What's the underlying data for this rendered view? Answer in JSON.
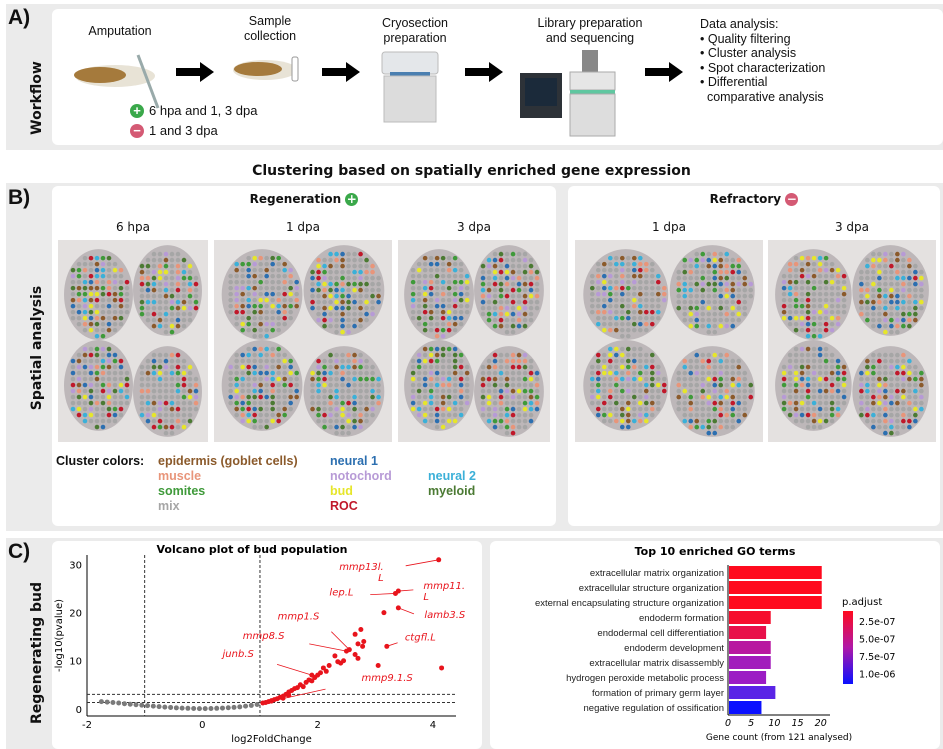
{
  "panel_a": {
    "label": "A)",
    "side_label": "Workflow",
    "steps": [
      {
        "title": "Amputation"
      },
      {
        "title": "Sample\ncollection"
      },
      {
        "title": "Cryosection\npreparation"
      },
      {
        "title": "Library preparation\nand sequencing"
      }
    ],
    "conditions": [
      {
        "icon": "plus-circle-icon",
        "color": "#3aa84a",
        "text": "6 hpa and 1, 3 dpa"
      },
      {
        "icon": "minus-circle-icon",
        "color": "#d45a74",
        "text": "1 and 3 dpa"
      }
    ],
    "analysis": {
      "title": "Data analysis:",
      "items": [
        "• Quality filtering",
        "• Cluster analysis",
        "• Spot characterization",
        "• Differential",
        "  comparative analysis"
      ]
    }
  },
  "heading": "Clustering based on spatially enriched gene expression",
  "panel_b": {
    "label": "B)",
    "side_label": "Spatial analysis",
    "regeneration": {
      "title": "Regeneration",
      "icon": "plus-circle-icon",
      "columns": [
        "6 hpa",
        "1 dpa",
        "3 dpa"
      ]
    },
    "refractory": {
      "title": "Refractory",
      "icon": "minus-circle-icon",
      "columns": [
        "1 dpa",
        "3 dpa"
      ]
    },
    "legend": {
      "title": "Cluster colors:",
      "items": [
        {
          "name": "epidermis (goblet cells)",
          "color": "#8b5a2b"
        },
        {
          "name": "muscle",
          "color": "#e8957a"
        },
        {
          "name": "somites",
          "color": "#3f9a3a"
        },
        {
          "name": "mix",
          "color": "#a6a6a6"
        },
        {
          "name": "neural 1",
          "color": "#2c6fb0"
        },
        {
          "name": "notochord",
          "color": "#b79ad6"
        },
        {
          "name": "bud",
          "color": "#e6e62a"
        },
        {
          "name": "ROC",
          "color": "#c0182a"
        },
        {
          "name": "neural 2",
          "color": "#3bb0d8"
        },
        {
          "name": "myeloid",
          "color": "#4b7a33"
        }
      ]
    }
  },
  "panel_c": {
    "label": "C)",
    "side_label": "Regenerating bud"
  },
  "chart_data": [
    {
      "type": "scatter",
      "title": "Volcano plot of bud population",
      "xlabel": "log2FoldChange",
      "ylabel": "-log10(pvalue)",
      "xlim": [
        -2,
        4.4
      ],
      "ylim": [
        -1.5,
        32
      ],
      "xticks": [
        -2,
        0,
        2,
        4
      ],
      "yticks": [
        0,
        10,
        20,
        30
      ],
      "thresholds": {
        "x": [
          -1,
          1
        ],
        "y": [
          1.3,
          3
        ]
      },
      "colors": {
        "significant": "#e8141c",
        "not_significant": "#7a7a7a"
      },
      "labeled_points": [
        {
          "gene": "mmp13l.\nL",
          "x": 4.1,
          "y": 31
        },
        {
          "gene": "mmp11.\nL",
          "x": 3.4,
          "y": 24.5
        },
        {
          "gene": "lep.L",
          "x": 3.35,
          "y": 24
        },
        {
          "gene": "lamb3.S",
          "x": 3.4,
          "y": 21
        },
        {
          "gene": "ctgfl.L",
          "x": 3.2,
          "y": 13
        },
        {
          "gene": "mmp1.S",
          "x": 2.55,
          "y": 12.3
        },
        {
          "gene": "mmp8.S",
          "x": 2.5,
          "y": 12
        },
        {
          "gene": "junb.S",
          "x": 1.9,
          "y": 7
        },
        {
          "gene": "mmp9.1.S",
          "x": 1.2,
          "y": 1.6
        }
      ],
      "significant_points": [
        [
          3.15,
          20
        ],
        [
          4.15,
          8.5
        ],
        [
          3.05,
          9
        ],
        [
          2.75,
          16.5
        ],
        [
          2.65,
          15.5
        ],
        [
          2.7,
          13.5
        ],
        [
          2.8,
          14
        ],
        [
          2.78,
          13
        ],
        [
          2.65,
          11.3
        ],
        [
          2.7,
          10.5
        ],
        [
          2.4,
          9.5
        ],
        [
          2.3,
          11
        ],
        [
          2.2,
          9
        ],
        [
          2.1,
          8.5
        ],
        [
          2.05,
          7.5
        ],
        [
          1.95,
          6.5
        ],
        [
          1.85,
          6
        ],
        [
          1.8,
          5.5
        ],
        [
          1.7,
          5
        ],
        [
          1.6,
          4.2
        ],
        [
          1.55,
          3.8
        ],
        [
          1.5,
          3.5
        ],
        [
          1.45,
          3
        ],
        [
          1.4,
          2.6
        ],
        [
          1.35,
          2.4
        ],
        [
          1.3,
          2.1
        ],
        [
          1.25,
          1.9
        ],
        [
          1.2,
          1.7
        ],
        [
          1.15,
          1.5
        ],
        [
          1.1,
          1.3
        ],
        [
          1.05,
          1.2
        ],
        [
          2.15,
          7.8
        ],
        [
          2.0,
          7
        ],
        [
          1.75,
          4.6
        ],
        [
          1.65,
          4.4
        ],
        [
          1.9,
          5.8
        ],
        [
          2.35,
          9.8
        ],
        [
          2.45,
          10
        ],
        [
          1.5,
          2.8
        ],
        [
          1.4,
          2.2
        ]
      ],
      "nonsignificant_points": [
        [
          -1.75,
          1.5
        ],
        [
          -1.65,
          1.4
        ],
        [
          -1.55,
          1.3
        ],
        [
          -1.45,
          1.2
        ],
        [
          -1.35,
          1.05
        ],
        [
          -1.25,
          0.95
        ],
        [
          -1.15,
          0.85
        ],
        [
          -1.05,
          0.75
        ],
        [
          -0.95,
          0.65
        ],
        [
          -0.85,
          0.55
        ],
        [
          -0.75,
          0.45
        ],
        [
          -0.65,
          0.35
        ],
        [
          -0.55,
          0.28
        ],
        [
          -0.45,
          0.2
        ],
        [
          -0.35,
          0.14
        ],
        [
          -0.25,
          0.1
        ],
        [
          -0.15,
          0.06
        ],
        [
          -0.05,
          0.04
        ],
        [
          0.05,
          0.04
        ],
        [
          0.15,
          0.06
        ],
        [
          0.25,
          0.1
        ],
        [
          0.35,
          0.15
        ],
        [
          0.45,
          0.22
        ],
        [
          0.55,
          0.3
        ],
        [
          0.65,
          0.4
        ],
        [
          0.75,
          0.55
        ],
        [
          0.85,
          0.7
        ],
        [
          0.95,
          0.9
        ]
      ]
    },
    {
      "type": "bar",
      "orientation": "horizontal",
      "title": "Top 10 enriched GO terms",
      "xlabel": "Gene count (from 121 analysed)",
      "xlim": [
        0,
        22
      ],
      "xticks": [
        0,
        5,
        10,
        15,
        20
      ],
      "categories": [
        "extracellular matrix organization",
        "extracellular structure organization",
        "external encapsulating structure organization",
        "endoderm formation",
        "endodermal cell differentiation",
        "endoderm development",
        "extracellular matrix disassembly",
        "hydrogen peroxide metabolic process",
        "formation of primary germ layer",
        "negative regulation of ossification"
      ],
      "values": [
        20,
        20,
        20,
        9,
        8,
        9,
        9,
        8,
        10,
        7
      ],
      "bar_colors": [
        "#ff0a1e",
        "#ff0a1e",
        "#ff0a1e",
        "#f60e2e",
        "#e8104a",
        "#b818a0",
        "#a21cbc",
        "#9c1cc4",
        "#5a24e6",
        "#0a10ff"
      ],
      "legend": {
        "title": "p.adjust",
        "ticks": [
          "2.5e-07",
          "5.0e-07",
          "7.5e-07",
          "1.0e-06"
        ],
        "color_high": "#ff0a1e",
        "color_low": "#0a10ff"
      }
    }
  ]
}
